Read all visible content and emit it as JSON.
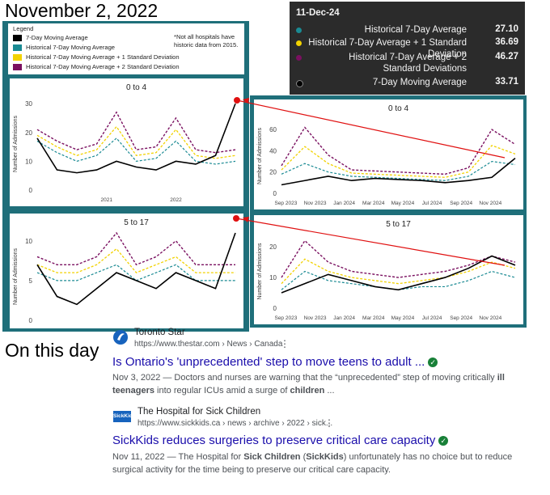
{
  "header": {
    "date": "November 2, 2022"
  },
  "legend": {
    "title": "Legend",
    "items": [
      {
        "label": "7-Day Moving Average",
        "color": "#000000"
      },
      {
        "label": "Historical 7-Day Moving Average",
        "color": "#1a8a93"
      },
      {
        "label": "Historical 7-Day Moving Average + 1 Standard Deviation",
        "color": "#f2d200"
      },
      {
        "label": "Historical 7-Day Moving Average + 2 Standard Deviation",
        "color": "#7a1060"
      }
    ],
    "note": "*Not all hospitals have historic data from 2015."
  },
  "tooltip": {
    "date": "11-Dec-24",
    "rows": [
      {
        "label": "Historical 7-Day Average",
        "value": "27.10",
        "color": "#1a8a93"
      },
      {
        "label": "Historical 7-Day Average + 1 Standard Deviation",
        "value": "36.69",
        "color": "#f2d200"
      },
      {
        "label": "Historical 7-Day Average + 2 Standard Deviations",
        "value": "46.27",
        "color": "#7a1060"
      },
      {
        "label": "7-Day Moving Average",
        "value": "33.71",
        "color": "#000000"
      }
    ]
  },
  "chart_data": [
    {
      "type": "line",
      "title": "0 to 4",
      "ylabel": "Number of Admissions",
      "ylim": [
        0,
        32
      ],
      "yticks": [
        0,
        10,
        20,
        30
      ],
      "xlabels": [
        "2021",
        "2022"
      ],
      "x": [
        0,
        0.1,
        0.2,
        0.3,
        0.4,
        0.5,
        0.6,
        0.7,
        0.8,
        0.9,
        1.0
      ],
      "series": [
        {
          "name": "7-Day Moving Average",
          "values": [
            18,
            7,
            6,
            7,
            10,
            8,
            7,
            10,
            9,
            12,
            30
          ],
          "color": "#000000"
        },
        {
          "name": "Historical 7-Day Moving Average",
          "values": [
            17,
            13,
            10,
            12,
            18,
            10,
            11,
            17,
            10,
            9,
            10
          ],
          "color": "#1a8a93"
        },
        {
          "name": "Historical 7-Day Moving Average + 1 Standard Deviation",
          "values": [
            19,
            15,
            12,
            14,
            22,
            12,
            13,
            21,
            12,
            11,
            12
          ],
          "color": "#f2d200"
        },
        {
          "name": "Historical 7-Day Moving Average + 2 Standard Deviation",
          "values": [
            21,
            17,
            14,
            16,
            27,
            14,
            15,
            25,
            14,
            13,
            14
          ],
          "color": "#7a1060"
        }
      ]
    },
    {
      "type": "line",
      "title": "0 to 4",
      "ylabel": "Number of Admissions",
      "ylim": [
        0,
        70
      ],
      "yticks": [
        0,
        20,
        40,
        60
      ],
      "xlabels": [
        "Sep 2023",
        "Nov 2023",
        "Jan 2024",
        "Mar 2024",
        "May 2024",
        "Jul 2024",
        "Sep 2024",
        "Nov 2024"
      ],
      "x": [
        0,
        0.1,
        0.2,
        0.3,
        0.4,
        0.5,
        0.6,
        0.7,
        0.8,
        0.9,
        1.0
      ],
      "series": [
        {
          "name": "7-Day Moving Average",
          "values": [
            8,
            12,
            16,
            12,
            14,
            13,
            12,
            10,
            12,
            15,
            33
          ],
          "color": "#000000"
        },
        {
          "name": "Historical 7-Day Moving Average",
          "values": [
            18,
            28,
            20,
            16,
            15,
            14,
            13,
            12,
            16,
            30,
            27
          ],
          "color": "#1a8a93"
        },
        {
          "name": "Historical 7-Day Moving Average + 1 Standard Deviation",
          "values": [
            22,
            44,
            28,
            19,
            18,
            17,
            16,
            15,
            20,
            45,
            37
          ],
          "color": "#f2d200"
        },
        {
          "name": "Historical 7-Day Moving Average + 2 Standard Deviation",
          "values": [
            26,
            62,
            36,
            22,
            21,
            20,
            19,
            18,
            24,
            60,
            46
          ],
          "color": "#7a1060"
        }
      ]
    },
    {
      "type": "line",
      "title": "5 to 17",
      "ylabel": "Number of Admissions",
      "ylim": [
        0,
        11
      ],
      "yticks": [
        0,
        5,
        10
      ],
      "xlabels": [],
      "x": [
        0,
        0.1,
        0.2,
        0.3,
        0.4,
        0.5,
        0.6,
        0.7,
        0.8,
        0.9,
        1.0
      ],
      "series": [
        {
          "name": "7-Day Moving Average",
          "values": [
            7,
            3,
            2,
            4,
            6,
            5,
            4,
            6,
            5,
            4,
            11
          ],
          "color": "#000000"
        },
        {
          "name": "Historical 7-Day Moving Average",
          "values": [
            6,
            5,
            5,
            6,
            7,
            5,
            6,
            7,
            5,
            5,
            5
          ],
          "color": "#1a8a93"
        },
        {
          "name": "Historical 7-Day Moving Average + 1 Standard Deviation",
          "values": [
            7,
            6,
            6,
            7,
            9,
            6,
            7,
            8,
            6,
            6,
            6
          ],
          "color": "#f2d200"
        },
        {
          "name": "Historical 7-Day Moving Average + 2 Standard Deviation",
          "values": [
            8,
            7,
            7,
            8,
            11,
            7,
            8,
            10,
            7,
            7,
            7
          ],
          "color": "#7a1060"
        }
      ]
    },
    {
      "type": "line",
      "title": "5 to 17",
      "ylabel": "Number of Admissions",
      "ylim": [
        0,
        24
      ],
      "yticks": [
        0,
        10,
        20
      ],
      "xlabels": [
        "Sep 2023",
        "Nov 2023",
        "Jan 2024",
        "Mar 2024",
        "May 2024",
        "Jul 2024",
        "Sep 2024",
        "Nov 2024"
      ],
      "x": [
        0,
        0.1,
        0.2,
        0.3,
        0.4,
        0.5,
        0.6,
        0.7,
        0.8,
        0.9,
        1.0
      ],
      "series": [
        {
          "name": "7-Day Moving Average",
          "values": [
            5,
            8,
            11,
            9,
            7,
            6,
            8,
            10,
            13,
            17,
            14
          ],
          "color": "#000000"
        },
        {
          "name": "Historical 7-Day Moving Average",
          "values": [
            6,
            12,
            9,
            8,
            7,
            6,
            7,
            7,
            9,
            12,
            10
          ],
          "color": "#1a8a93"
        },
        {
          "name": "Historical 7-Day Moving Average + 1 Standard Deviation",
          "values": [
            8,
            16,
            12,
            10,
            9,
            8,
            9,
            10,
            12,
            15,
            13
          ],
          "color": "#f2d200"
        },
        {
          "name": "Historical 7-Day Moving Average + 2 Standard Deviation",
          "values": [
            10,
            22,
            15,
            12,
            11,
            10,
            11,
            12,
            14,
            17,
            15
          ],
          "color": "#7a1060"
        }
      ]
    }
  ],
  "news": {
    "heading": "On this day",
    "results": [
      {
        "source": "Toronto Star",
        "url": "https://www.thestar.com › News › Canada",
        "title": "Is Ontario's 'unprecedented' step to move teens to adult ...",
        "snippet_parts": [
          {
            "t": "Nov 3, 2022 — Doctors and nurses are warning that the “unprecedented” step of moving critically ",
            "b": false
          },
          {
            "t": "ill teenagers",
            "b": true
          },
          {
            "t": " into regular ICUs amid a surge of ",
            "b": false
          },
          {
            "t": "children",
            "b": true
          },
          {
            "t": " ...",
            "b": false
          }
        ]
      },
      {
        "source": "The Hospital for Sick Children",
        "url": "https://www.sickkids.ca › news › archive › 2022 › sick...",
        "logo_text": "SickKids",
        "title": "SickKids reduces surgeries to preserve critical care capacity",
        "snippet_parts": [
          {
            "t": "Nov 11, 2022 — The Hospital for ",
            "b": false
          },
          {
            "t": "Sick Children",
            "b": true
          },
          {
            "t": " (",
            "b": false
          },
          {
            "t": "SickKids",
            "b": true
          },
          {
            "t": ") unfortunately has no choice but to reduce surgical activity for the time being to preserve our critical care capacity.",
            "b": false
          }
        ]
      }
    ]
  }
}
